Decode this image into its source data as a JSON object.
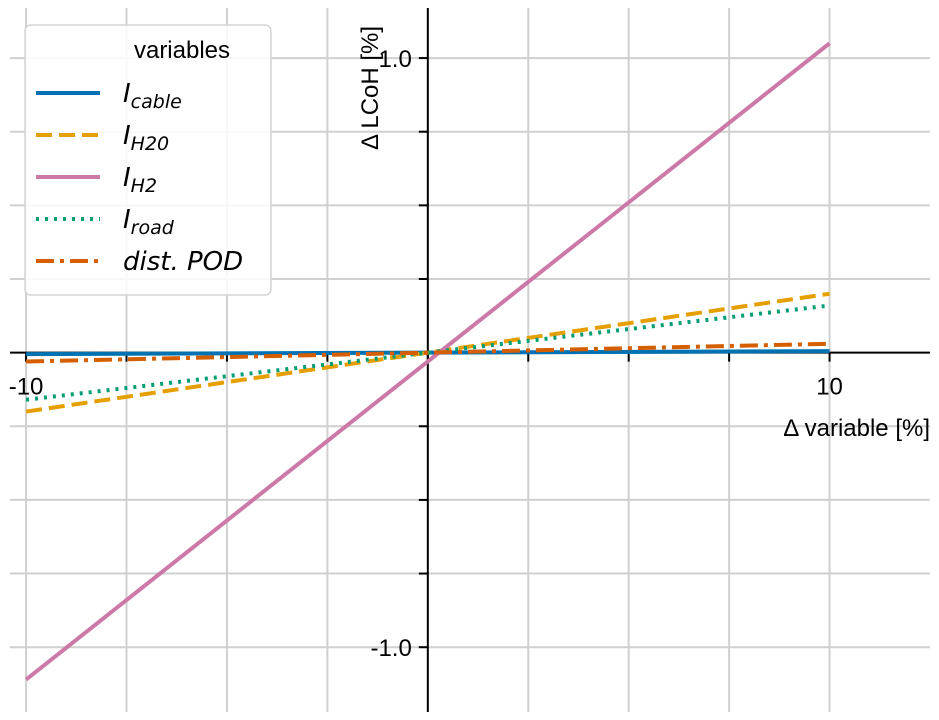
{
  "chart_data": {
    "type": "line",
    "title": "",
    "xlabel": "Δ variable [%]",
    "ylabel": "Δ LCoH [%]",
    "xlim": [
      -10.4,
      12.5
    ],
    "ylim": [
      -1.22,
      1.17
    ],
    "x_ticks": [
      -10,
      -7.5,
      -5,
      -2.5,
      0,
      2.5,
      5,
      7.5,
      10
    ],
    "y_ticks": [
      -1.0,
      -0.75,
      -0.5,
      -0.25,
      0,
      0.25,
      0.5,
      0.75,
      1.0
    ],
    "x_tick_labels": [
      {
        "value": -10,
        "text": "-10"
      },
      {
        "value": 10,
        "text": "10"
      }
    ],
    "y_tick_labels": [
      {
        "value": 1.0,
        "text": "1.0"
      },
      {
        "value": -1.0,
        "text": "-1.0"
      }
    ],
    "grid": true,
    "legend_title": "variables",
    "legend_position": "top-left",
    "series": [
      {
        "name": "I_cable",
        "label_main": "I",
        "label_sub": "cable",
        "color": "#0072B2",
        "style": "solid",
        "x": [
          -10,
          10
        ],
        "y": [
          -0.005,
          0.005
        ]
      },
      {
        "name": "I_H20",
        "label_main": "I",
        "label_sub": "H20",
        "color": "#E69F00",
        "style": "dashed",
        "x": [
          -10,
          10
        ],
        "y": [
          -0.2,
          0.2
        ]
      },
      {
        "name": "I_H2",
        "label_main": "I",
        "label_sub": "H2",
        "color": "#CC79A7",
        "style": "solid",
        "x": [
          -10,
          10
        ],
        "y": [
          -1.11,
          1.05
        ]
      },
      {
        "name": "I_road",
        "label_main": "I",
        "label_sub": "road",
        "color": "#009E73",
        "style": "dotted",
        "x": [
          -10,
          10
        ],
        "y": [
          -0.16,
          0.16
        ]
      },
      {
        "name": "dist.POD",
        "label_main": "dist. POD",
        "label_sub": "",
        "color": "#D55E00",
        "style": "dashdot",
        "x": [
          -10,
          10
        ],
        "y": [
          -0.03,
          0.03
        ]
      }
    ]
  }
}
